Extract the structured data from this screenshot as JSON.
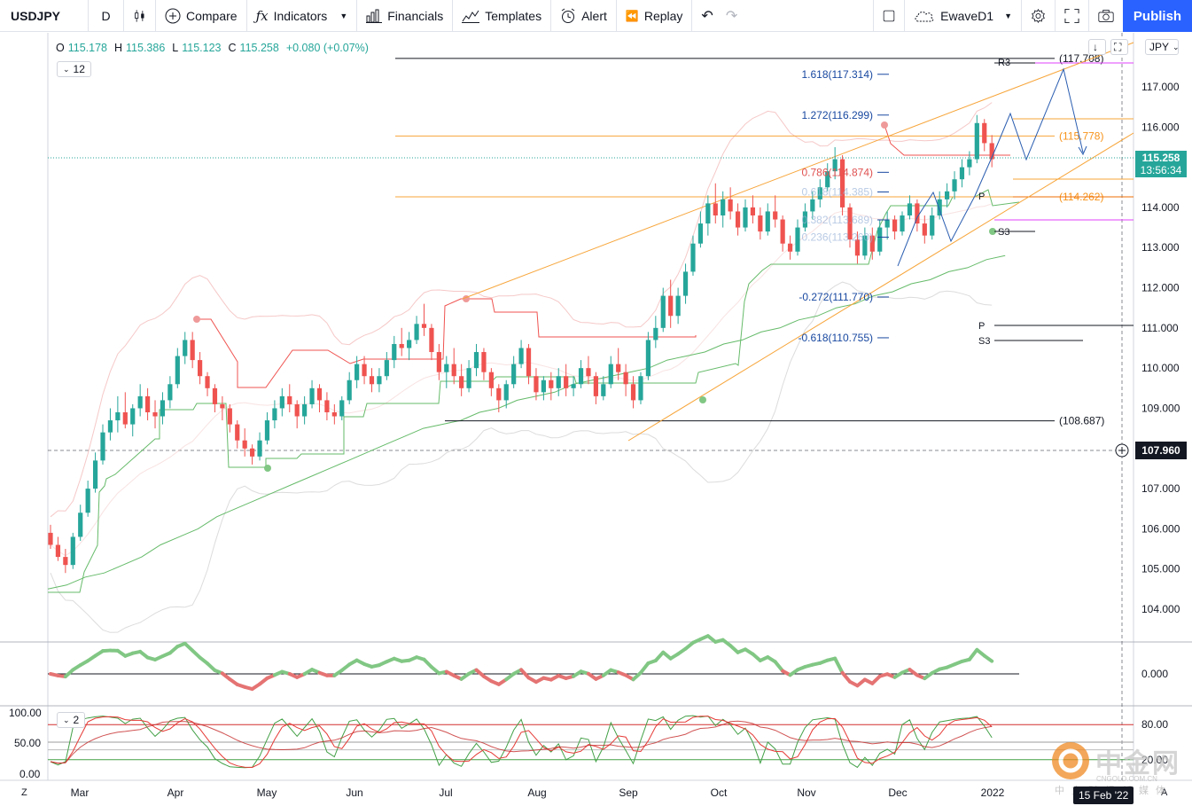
{
  "toolbar": {
    "symbol": "USDJPY",
    "interval": "D",
    "compare": "Compare",
    "indicators": "Indicators",
    "financials": "Financials",
    "templates": "Templates",
    "alert": "Alert",
    "replay": "Replay",
    "layout_name": "EwaveD1",
    "publish": "Publish"
  },
  "legend": {
    "o_key": "O",
    "o_val": "115.178",
    "h_key": "H",
    "h_val": "115.386",
    "l_key": "L",
    "l_val": "115.123",
    "c_key": "C",
    "c_val": "115.258",
    "change": "+0.080 (+0.07%)",
    "indicator_count": "12",
    "pane2_count": "2"
  },
  "pane3_axis": {
    "top": "100.00",
    "mid": "50.00",
    "bottom": "0.00"
  },
  "watermark": {
    "logo": "中金网",
    "url": "CNGOLD.COM.CN",
    "sub": "中文财经新媒体"
  },
  "crosshair_date": "15 Feb '22",
  "corner_labels": {
    "z": "Z",
    "a": "A"
  },
  "currency": "JPY",
  "colors": {
    "up": "#26a69a",
    "down": "#ef5350",
    "accent": "#2962ff",
    "fib": "#1848a0",
    "channel": "#f7a53a"
  },
  "chart_data": {
    "type": "candlestick",
    "symbol": "USDJPY",
    "timeframe": "D",
    "y_range": [
      103.3,
      118.3
    ],
    "y_ticks": [
      "117.000",
      "116.000",
      "115.000",
      "114.000",
      "113.000",
      "112.000",
      "111.000",
      "110.000",
      "109.000",
      "108.000",
      "107.000",
      "106.000",
      "105.000",
      "104.000"
    ],
    "x_ticks": [
      "Mar",
      "Apr",
      "May",
      "Jun",
      "Jul",
      "Aug",
      "Sep",
      "Oct",
      "Nov",
      "Dec",
      "2022"
    ],
    "last_price": "115.258",
    "countdown": "13:56:34",
    "crosshair_price": "107.960",
    "candles": [
      [
        105.9,
        106.1,
        105.5,
        105.6
      ],
      [
        105.6,
        105.8,
        105.2,
        105.3
      ],
      [
        105.3,
        105.5,
        104.9,
        105.1
      ],
      [
        105.1,
        105.9,
        105.0,
        105.8
      ],
      [
        105.8,
        106.6,
        105.7,
        106.4
      ],
      [
        106.4,
        107.2,
        106.3,
        107.0
      ],
      [
        107.0,
        107.9,
        106.9,
        107.7
      ],
      [
        107.7,
        108.6,
        107.6,
        108.4
      ],
      [
        108.4,
        109.0,
        108.2,
        108.7
      ],
      [
        108.7,
        109.3,
        108.4,
        108.9
      ],
      [
        108.9,
        109.4,
        108.5,
        108.6
      ],
      [
        108.6,
        109.1,
        108.3,
        109.0
      ],
      [
        109.0,
        109.6,
        108.8,
        109.3
      ],
      [
        109.3,
        109.5,
        108.7,
        108.9
      ],
      [
        108.9,
        109.2,
        108.5,
        108.8
      ],
      [
        108.8,
        109.4,
        108.6,
        109.2
      ],
      [
        109.2,
        109.8,
        109.0,
        109.6
      ],
      [
        109.6,
        110.5,
        109.5,
        110.3
      ],
      [
        110.3,
        110.9,
        110.1,
        110.7
      ],
      [
        110.7,
        110.9,
        110.0,
        110.2
      ],
      [
        110.2,
        110.4,
        109.6,
        109.8
      ],
      [
        109.8,
        109.9,
        109.3,
        109.5
      ],
      [
        109.5,
        109.6,
        108.9,
        109.1
      ],
      [
        109.1,
        109.3,
        108.7,
        109.0
      ],
      [
        109.0,
        109.1,
        108.4,
        108.6
      ],
      [
        108.6,
        108.7,
        108.0,
        108.2
      ],
      [
        108.2,
        108.5,
        107.8,
        108.0
      ],
      [
        108.0,
        108.1,
        107.6,
        107.8
      ],
      [
        107.8,
        108.4,
        107.7,
        108.2
      ],
      [
        108.2,
        108.9,
        108.1,
        108.7
      ],
      [
        108.7,
        109.2,
        108.5,
        109.0
      ],
      [
        109.0,
        109.5,
        108.8,
        109.3
      ],
      [
        109.3,
        109.6,
        108.9,
        109.1
      ],
      [
        109.1,
        109.2,
        108.5,
        108.8
      ],
      [
        108.8,
        109.3,
        108.6,
        109.1
      ],
      [
        109.1,
        109.7,
        109.0,
        109.5
      ],
      [
        109.5,
        109.6,
        108.9,
        109.2
      ],
      [
        109.2,
        109.4,
        108.7,
        108.9
      ],
      [
        108.9,
        109.1,
        108.6,
        108.8
      ],
      [
        108.8,
        109.3,
        108.7,
        109.2
      ],
      [
        109.2,
        109.9,
        109.1,
        109.7
      ],
      [
        109.7,
        110.3,
        109.5,
        110.1
      ],
      [
        110.1,
        110.3,
        109.6,
        109.8
      ],
      [
        109.8,
        110.0,
        109.4,
        109.6
      ],
      [
        109.6,
        110.0,
        109.4,
        109.8
      ],
      [
        109.8,
        110.4,
        109.7,
        110.2
      ],
      [
        110.2,
        110.8,
        110.0,
        110.6
      ],
      [
        110.6,
        111.0,
        110.3,
        110.5
      ],
      [
        110.5,
        110.9,
        110.2,
        110.7
      ],
      [
        110.7,
        111.3,
        110.6,
        111.1
      ],
      [
        111.1,
        111.6,
        110.8,
        111.0
      ],
      [
        111.0,
        111.1,
        110.2,
        110.4
      ],
      [
        110.4,
        110.6,
        109.7,
        109.9
      ],
      [
        109.9,
        110.3,
        109.5,
        110.1
      ],
      [
        110.1,
        110.5,
        109.6,
        109.8
      ],
      [
        109.8,
        110.1,
        109.3,
        109.5
      ],
      [
        109.5,
        110.2,
        109.4,
        110.0
      ],
      [
        110.0,
        110.6,
        109.8,
        110.4
      ],
      [
        110.4,
        110.5,
        109.7,
        109.9
      ],
      [
        109.9,
        110.0,
        109.3,
        109.5
      ],
      [
        109.5,
        109.6,
        108.9,
        109.2
      ],
      [
        109.2,
        109.7,
        109.0,
        109.6
      ],
      [
        109.6,
        110.3,
        109.5,
        110.1
      ],
      [
        110.1,
        110.7,
        110.0,
        110.5
      ],
      [
        110.5,
        110.6,
        109.6,
        109.8
      ],
      [
        109.8,
        110.0,
        109.2,
        109.4
      ],
      [
        109.4,
        109.8,
        109.2,
        109.7
      ],
      [
        109.7,
        109.9,
        109.2,
        109.5
      ],
      [
        109.5,
        110.0,
        109.3,
        109.8
      ],
      [
        109.8,
        110.1,
        109.3,
        109.5
      ],
      [
        109.5,
        109.8,
        109.3,
        109.6
      ],
      [
        109.6,
        110.2,
        109.5,
        110.0
      ],
      [
        110.0,
        110.3,
        109.6,
        109.8
      ],
      [
        109.8,
        109.9,
        109.1,
        109.3
      ],
      [
        109.3,
        109.8,
        109.2,
        109.6
      ],
      [
        109.6,
        110.3,
        109.5,
        110.1
      ],
      [
        110.1,
        110.5,
        109.7,
        109.9
      ],
      [
        109.9,
        110.1,
        109.3,
        109.6
      ],
      [
        109.6,
        109.8,
        109.0,
        109.2
      ],
      [
        109.2,
        109.9,
        109.1,
        109.8
      ],
      [
        109.8,
        110.9,
        109.7,
        110.7
      ],
      [
        110.7,
        111.3,
        110.5,
        111.0
      ],
      [
        111.0,
        112.0,
        110.9,
        111.8
      ],
      [
        111.8,
        112.2,
        111.0,
        111.3
      ],
      [
        111.3,
        112.0,
        111.1,
        111.8
      ],
      [
        111.8,
        112.6,
        111.6,
        112.4
      ],
      [
        112.4,
        113.3,
        112.3,
        113.1
      ],
      [
        113.1,
        113.9,
        113.0,
        113.6
      ],
      [
        113.6,
        114.3,
        113.3,
        114.1
      ],
      [
        114.1,
        114.6,
        113.6,
        113.8
      ],
      [
        113.8,
        114.4,
        113.5,
        114.2
      ],
      [
        114.2,
        114.5,
        113.7,
        113.9
      ],
      [
        113.9,
        114.1,
        113.3,
        113.5
      ],
      [
        113.5,
        114.2,
        113.4,
        114.0
      ],
      [
        114.0,
        114.3,
        113.6,
        113.8
      ],
      [
        113.8,
        114.0,
        113.2,
        113.4
      ],
      [
        113.4,
        114.1,
        113.3,
        113.9
      ],
      [
        113.9,
        114.3,
        113.5,
        113.7
      ],
      [
        113.7,
        113.8,
        112.9,
        113.1
      ],
      [
        113.1,
        113.3,
        112.7,
        112.9
      ],
      [
        112.9,
        113.7,
        112.8,
        113.5
      ],
      [
        113.5,
        114.1,
        113.4,
        113.9
      ],
      [
        113.9,
        114.4,
        113.7,
        114.2
      ],
      [
        114.2,
        114.7,
        114.0,
        114.5
      ],
      [
        114.5,
        115.1,
        114.4,
        114.9
      ],
      [
        114.9,
        115.5,
        114.7,
        115.2
      ],
      [
        115.2,
        115.3,
        113.8,
        114.0
      ],
      [
        114.0,
        114.1,
        113.0,
        113.2
      ],
      [
        113.2,
        113.4,
        112.6,
        112.8
      ],
      [
        112.8,
        113.5,
        112.7,
        113.3
      ],
      [
        113.3,
        113.5,
        112.7,
        112.9
      ],
      [
        112.9,
        113.7,
        112.8,
        113.5
      ],
      [
        113.5,
        113.9,
        113.2,
        113.7
      ],
      [
        113.7,
        113.8,
        113.2,
        113.4
      ],
      [
        113.4,
        113.9,
        113.3,
        113.8
      ],
      [
        113.8,
        114.3,
        113.7,
        114.1
      ],
      [
        114.1,
        114.2,
        113.4,
        113.6
      ],
      [
        113.6,
        113.8,
        113.1,
        113.3
      ],
      [
        113.3,
        114.0,
        113.2,
        113.8
      ],
      [
        113.8,
        114.4,
        113.7,
        114.2
      ],
      [
        114.2,
        114.6,
        114.0,
        114.4
      ],
      [
        114.4,
        114.9,
        114.2,
        114.7
      ],
      [
        114.7,
        115.2,
        114.5,
        115.0
      ],
      [
        115.0,
        115.4,
        114.8,
        115.2
      ],
      [
        115.2,
        116.3,
        115.1,
        116.1
      ],
      [
        116.1,
        116.2,
        115.4,
        115.6
      ],
      [
        115.6,
        115.8,
        115.0,
        115.2
      ]
    ],
    "moving_average": [
      104.5,
      104.6,
      104.8,
      104.9,
      105.1,
      105.3,
      105.6,
      105.8,
      106.0,
      106.3,
      106.5,
      106.7,
      106.9,
      107.1,
      107.3,
      107.5,
      107.7,
      107.9,
      108.1,
      108.3,
      108.5,
      108.6,
      108.7,
      108.9,
      109.0,
      109.2,
      109.3,
      109.4,
      109.6,
      109.7,
      109.8,
      109.9,
      110.0,
      110.2,
      110.3,
      110.4,
      110.6,
      110.7,
      110.9,
      111.0,
      111.2,
      111.3,
      111.5,
      111.6,
      111.8,
      111.9,
      112.1,
      112.2,
      112.4,
      112.5,
      112.7,
      112.8
    ],
    "support_resistance": [
      {
        "label": "(117.708)",
        "value": 117.708,
        "color": "#131722"
      },
      {
        "label": "(115.778)",
        "value": 115.778,
        "color": "#f7a53a"
      },
      {
        "label": "(114.262)",
        "value": 114.262,
        "color": "#f7a53a"
      },
      {
        "label": "(108.687)",
        "value": 108.687,
        "color": "#131722"
      }
    ],
    "fib_levels": [
      {
        "label": "1.618(117.314)",
        "value": 117.314
      },
      {
        "label": "1.272(116.299)",
        "value": 116.299
      },
      {
        "label": "0.786(114.874)",
        "value": 114.874
      },
      {
        "label": "0.618(114.385)",
        "value": 114.385
      },
      {
        "label": "0.382(113.689)",
        "value": 113.689
      },
      {
        "label": "0.236(113.260)",
        "value": 113.26
      },
      {
        "label": "-0.272(111.770)",
        "value": 111.77
      },
      {
        "label": "-0.618(110.755)",
        "value": 110.755
      }
    ],
    "pivots": [
      {
        "label": "R3",
        "value": 117.64
      },
      {
        "label": "P",
        "value": 114.27
      },
      {
        "label": "S3",
        "value": 113.38
      },
      {
        "label": "P",
        "value": 111.06
      },
      {
        "label": "S3",
        "value": 110.7
      }
    ],
    "osc_axis": "0.000",
    "stoch_axis": [
      "80.00",
      "20.00"
    ]
  }
}
